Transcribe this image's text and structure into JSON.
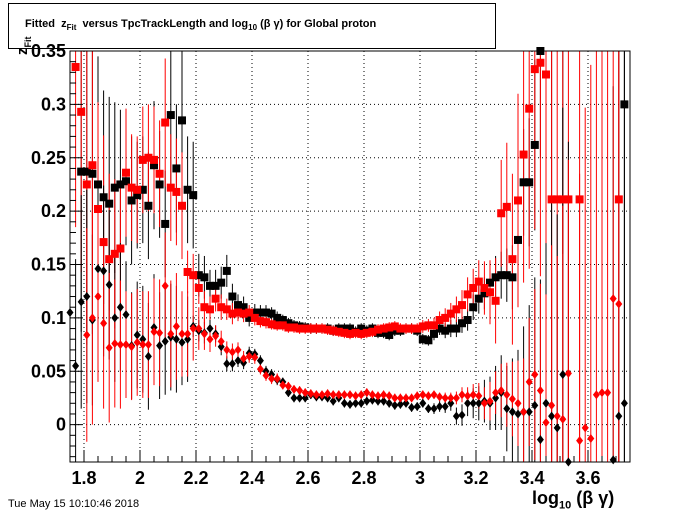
{
  "title": {
    "prefix": "Fitted",
    "z": "z",
    "z_sub": "Fit",
    "middle": "versus TpcTrackLength and log",
    "log_sub": "10",
    "suffix": "(β γ) for Global proton"
  },
  "ylabel": {
    "main": "z",
    "sub": "Fit"
  },
  "xlabel": {
    "main": "log",
    "sub": "10",
    "suffix": "(β γ)"
  },
  "footer": "Tue May 15 10:10:46 2018",
  "chart_data": {
    "type": "scatter",
    "xlim": [
      1.75,
      3.75
    ],
    "ylim": [
      -0.035,
      0.35
    ],
    "x_ticks": [
      "1.8",
      "2",
      "2.2",
      "2.4",
      "2.6",
      "2.8",
      "3",
      "3.2",
      "3.4",
      "3.6"
    ],
    "x_tick_values": [
      1.8,
      2.0,
      2.2,
      2.4,
      2.6,
      2.8,
      3.0,
      3.2,
      3.4,
      3.6
    ],
    "y_ticks": [
      "0",
      "0.05",
      "0.1",
      "0.15",
      "0.2",
      "0.25",
      "0.3",
      "0.35"
    ],
    "y_tick_values": [
      0,
      0.05,
      0.1,
      0.15,
      0.2,
      0.25,
      0.3,
      0.35
    ],
    "grid": true,
    "series": [
      {
        "marker": "square",
        "color": "#000000",
        "x": [
          1.79,
          1.81,
          1.83,
          1.85,
          1.87,
          1.89,
          1.91,
          1.93,
          1.95,
          1.97,
          1.99,
          2.01,
          2.03,
          2.05,
          2.07,
          2.09,
          2.11,
          2.13,
          2.15,
          2.17,
          2.19,
          2.21,
          2.23,
          2.25,
          2.27,
          2.29,
          2.31,
          2.33,
          2.35,
          2.37,
          2.39,
          2.41,
          2.43,
          2.45,
          2.47,
          2.49,
          2.51,
          2.53,
          2.55,
          2.57,
          2.59,
          2.61,
          2.63,
          2.65,
          2.67,
          2.69,
          2.71,
          2.73,
          2.75,
          2.77,
          2.79,
          2.81,
          2.83,
          2.85,
          2.87,
          2.89,
          2.91,
          2.93,
          2.95,
          2.97,
          2.99,
          3.01,
          3.03,
          3.05,
          3.07,
          3.09,
          3.11,
          3.13,
          3.15,
          3.17,
          3.19,
          3.21,
          3.23,
          3.25,
          3.27,
          3.29,
          3.31,
          3.33,
          3.35,
          3.37,
          3.39,
          3.41,
          3.43,
          3.45,
          3.47,
          3.51,
          3.73
        ],
        "y": [
          0.237,
          0.237,
          0.235,
          0.225,
          0.213,
          0.207,
          0.222,
          0.225,
          0.228,
          0.21,
          0.215,
          0.22,
          0.205,
          0.243,
          0.225,
          0.188,
          0.29,
          0.24,
          0.285,
          0.22,
          0.215,
          0.14,
          0.138,
          0.13,
          0.13,
          0.133,
          0.144,
          0.12,
          0.112,
          0.11,
          0.1,
          0.105,
          0.105,
          0.105,
          0.104,
          0.1,
          0.098,
          0.095,
          0.093,
          0.092,
          0.091,
          0.09,
          0.09,
          0.09,
          0.09,
          0.088,
          0.09,
          0.09,
          0.09,
          0.087,
          0.09,
          0.088,
          0.09,
          0.086,
          0.086,
          0.084,
          0.088,
          0.088,
          0.09,
          0.09,
          0.088,
          0.08,
          0.079,
          0.085,
          0.09,
          0.088,
          0.09,
          0.09,
          0.095,
          0.098,
          0.11,
          0.118,
          0.123,
          0.133,
          0.138,
          0.14,
          0.14,
          0.138,
          0.173,
          0.227,
          0.227,
          0.262,
          0.35,
          0.36,
          0.36,
          0.36,
          0.3
        ],
        "err": [
          0.15,
          0.15,
          0.15,
          0.12,
          0.1,
          0.1,
          0.08,
          0.07,
          0.06,
          0.06,
          0.05,
          0.05,
          0.05,
          0.06,
          0.05,
          0.05,
          0.07,
          0.06,
          0.07,
          0.05,
          0.05,
          0.02,
          0.02,
          0.015,
          0.015,
          0.015,
          0.015,
          0.012,
          0.01,
          0.01,
          0.008,
          0.008,
          0.007,
          0.007,
          0.006,
          0.006,
          0.005,
          0.005,
          0.005,
          0.005,
          0.005,
          0.005,
          0.005,
          0.005,
          0.005,
          0.005,
          0.005,
          0.005,
          0.005,
          0.005,
          0.005,
          0.005,
          0.005,
          0.005,
          0.005,
          0.005,
          0.005,
          0.005,
          0.005,
          0.005,
          0.005,
          0.005,
          0.005,
          0.006,
          0.006,
          0.007,
          0.008,
          0.008,
          0.009,
          0.01,
          0.012,
          0.014,
          0.015,
          0.017,
          0.02,
          0.022,
          0.025,
          0.03,
          0.04,
          0.05,
          0.06,
          0.08,
          0.1,
          0.12,
          0.15,
          0.2,
          0.35
        ]
      },
      {
        "marker": "square",
        "color": "#ff0000",
        "x": [
          1.77,
          1.79,
          1.81,
          1.83,
          1.85,
          1.87,
          1.89,
          1.91,
          1.93,
          1.95,
          1.97,
          1.99,
          2.01,
          2.03,
          2.05,
          2.07,
          2.09,
          2.11,
          2.13,
          2.15,
          2.17,
          2.19,
          2.21,
          2.23,
          2.25,
          2.27,
          2.29,
          2.31,
          2.33,
          2.35,
          2.37,
          2.39,
          2.41,
          2.43,
          2.45,
          2.47,
          2.49,
          2.51,
          2.53,
          2.55,
          2.57,
          2.59,
          2.61,
          2.63,
          2.65,
          2.67,
          2.69,
          2.71,
          2.73,
          2.75,
          2.77,
          2.79,
          2.81,
          2.83,
          2.85,
          2.87,
          2.89,
          2.91,
          2.93,
          2.95,
          2.97,
          2.99,
          3.01,
          3.03,
          3.05,
          3.07,
          3.09,
          3.11,
          3.13,
          3.15,
          3.17,
          3.19,
          3.21,
          3.23,
          3.25,
          3.27,
          3.29,
          3.31,
          3.33,
          3.35,
          3.37,
          3.39,
          3.41,
          3.43,
          3.45,
          3.47,
          3.49,
          3.51,
          3.53,
          3.57,
          3.71
        ],
        "y": [
          0.335,
          0.293,
          0.225,
          0.243,
          0.202,
          0.171,
          0.155,
          0.16,
          0.165,
          0.236,
          0.222,
          0.22,
          0.248,
          0.25,
          0.248,
          0.235,
          0.283,
          0.222,
          0.218,
          0.205,
          0.143,
          0.14,
          0.128,
          0.11,
          0.108,
          0.118,
          0.11,
          0.108,
          0.104,
          0.105,
          0.104,
          0.105,
          0.1,
          0.097,
          0.096,
          0.094,
          0.093,
          0.093,
          0.091,
          0.091,
          0.09,
          0.09,
          0.09,
          0.09,
          0.09,
          0.089,
          0.088,
          0.087,
          0.086,
          0.085,
          0.086,
          0.085,
          0.086,
          0.087,
          0.089,
          0.09,
          0.091,
          0.092,
          0.09,
          0.09,
          0.09,
          0.09,
          0.092,
          0.093,
          0.093,
          0.098,
          0.1,
          0.104,
          0.108,
          0.112,
          0.122,
          0.128,
          0.134,
          0.128,
          0.124,
          0.116,
          0.198,
          0.204,
          0.155,
          0.21,
          0.253,
          0.296,
          0.333,
          0.339,
          0.328,
          0.211,
          0.211,
          0.211,
          0.211,
          0.211,
          0.211
        ],
        "err": [
          0.15,
          0.15,
          0.15,
          0.12,
          0.1,
          0.1,
          0.08,
          0.07,
          0.06,
          0.06,
          0.05,
          0.05,
          0.05,
          0.05,
          0.05,
          0.05,
          0.06,
          0.05,
          0.05,
          0.05,
          0.02,
          0.02,
          0.015,
          0.015,
          0.012,
          0.012,
          0.012,
          0.01,
          0.01,
          0.008,
          0.008,
          0.007,
          0.007,
          0.006,
          0.006,
          0.005,
          0.005,
          0.005,
          0.005,
          0.005,
          0.005,
          0.005,
          0.005,
          0.005,
          0.005,
          0.005,
          0.005,
          0.005,
          0.005,
          0.005,
          0.005,
          0.005,
          0.005,
          0.005,
          0.005,
          0.005,
          0.005,
          0.005,
          0.005,
          0.005,
          0.005,
          0.005,
          0.006,
          0.006,
          0.007,
          0.008,
          0.009,
          0.01,
          0.012,
          0.014,
          0.016,
          0.018,
          0.02,
          0.025,
          0.03,
          0.04,
          0.05,
          0.06,
          0.08,
          0.1,
          0.12,
          0.15,
          0.15,
          0.2,
          0.25,
          0.25,
          0.3,
          0.3,
          0.3,
          0.35,
          0.35
        ]
      },
      {
        "marker": "diamond",
        "color": "#000000",
        "x": [
          1.75,
          1.77,
          1.79,
          1.81,
          1.83,
          1.85,
          1.87,
          1.89,
          1.91,
          1.93,
          1.95,
          1.97,
          1.99,
          2.01,
          2.03,
          2.05,
          2.07,
          2.09,
          2.11,
          2.13,
          2.15,
          2.17,
          2.19,
          2.21,
          2.23,
          2.25,
          2.27,
          2.29,
          2.31,
          2.33,
          2.35,
          2.37,
          2.39,
          2.41,
          2.43,
          2.45,
          2.47,
          2.49,
          2.51,
          2.53,
          2.55,
          2.57,
          2.59,
          2.61,
          2.63,
          2.65,
          2.67,
          2.69,
          2.71,
          2.73,
          2.75,
          2.77,
          2.79,
          2.81,
          2.83,
          2.85,
          2.87,
          2.89,
          2.91,
          2.93,
          2.95,
          2.97,
          2.99,
          3.01,
          3.03,
          3.05,
          3.07,
          3.09,
          3.11,
          3.13,
          3.15,
          3.17,
          3.19,
          3.21,
          3.23,
          3.25,
          3.27,
          3.29,
          3.31,
          3.33,
          3.35,
          3.37,
          3.39,
          3.41,
          3.43,
          3.45,
          3.47,
          3.49,
          3.51,
          3.53,
          3.69,
          3.71,
          3.73
        ],
        "y": [
          0.105,
          0.055,
          0.115,
          0.12,
          0.098,
          0.146,
          0.144,
          0.131,
          0.1,
          0.11,
          0.103,
          0.074,
          0.084,
          0.08,
          0.064,
          0.091,
          0.074,
          0.078,
          0.082,
          0.08,
          0.077,
          0.08,
          0.092,
          0.088,
          0.086,
          0.09,
          0.085,
          0.073,
          0.057,
          0.057,
          0.06,
          0.058,
          0.067,
          0.066,
          0.06,
          0.05,
          0.047,
          0.042,
          0.04,
          0.03,
          0.025,
          0.025,
          0.025,
          0.028,
          0.026,
          0.026,
          0.025,
          0.022,
          0.025,
          0.02,
          0.019,
          0.02,
          0.02,
          0.022,
          0.023,
          0.022,
          0.022,
          0.02,
          0.018,
          0.019,
          0.02,
          0.016,
          0.017,
          0.02,
          0.015,
          0.015,
          0.017,
          0.017,
          0.02,
          0.008,
          0.009,
          0.02,
          0.02,
          0.02,
          0.022,
          0.02,
          0.025,
          0.03,
          0.015,
          0.012,
          0.01,
          0.012,
          0.012,
          0.018,
          -0.014,
          0.02,
          0.008,
          -0.003,
          0.047,
          -0.035,
          -0.033,
          0.008,
          0.02
        ],
        "err": [
          0.1,
          0.1,
          0.1,
          0.1,
          0.08,
          0.08,
          0.08,
          0.07,
          0.06,
          0.06,
          0.05,
          0.05,
          0.05,
          0.05,
          0.05,
          0.05,
          0.05,
          0.05,
          0.05,
          0.05,
          0.04,
          0.04,
          0.01,
          0.01,
          0.01,
          0.008,
          0.008,
          0.008,
          0.007,
          0.007,
          0.006,
          0.006,
          0.006,
          0.005,
          0.005,
          0.005,
          0.005,
          0.005,
          0.004,
          0.004,
          0.004,
          0.004,
          0.004,
          0.004,
          0.004,
          0.004,
          0.004,
          0.004,
          0.004,
          0.004,
          0.004,
          0.004,
          0.004,
          0.004,
          0.004,
          0.004,
          0.004,
          0.004,
          0.004,
          0.004,
          0.004,
          0.004,
          0.004,
          0.004,
          0.004,
          0.005,
          0.005,
          0.006,
          0.007,
          0.008,
          0.01,
          0.012,
          0.014,
          0.016,
          0.02,
          0.025,
          0.03,
          0.035,
          0.04,
          0.05,
          0.06,
          0.08,
          0.1,
          0.12,
          0.15,
          0.15,
          0.2,
          0.2,
          0.25,
          0.3,
          0.35,
          0.35,
          0.35
        ]
      },
      {
        "marker": "diamond",
        "color": "#ff0000",
        "x": [
          1.81,
          1.83,
          1.85,
          1.87,
          1.89,
          1.91,
          1.93,
          1.95,
          1.97,
          1.99,
          2.01,
          2.03,
          2.05,
          2.07,
          2.09,
          2.11,
          2.13,
          2.15,
          2.17,
          2.19,
          2.21,
          2.23,
          2.25,
          2.27,
          2.29,
          2.31,
          2.33,
          2.35,
          2.37,
          2.39,
          2.41,
          2.43,
          2.45,
          2.47,
          2.49,
          2.51,
          2.53,
          2.55,
          2.57,
          2.59,
          2.61,
          2.63,
          2.65,
          2.67,
          2.69,
          2.71,
          2.73,
          2.75,
          2.77,
          2.79,
          2.81,
          2.83,
          2.85,
          2.87,
          2.89,
          2.91,
          2.93,
          2.95,
          2.97,
          2.99,
          3.01,
          3.03,
          3.05,
          3.07,
          3.09,
          3.11,
          3.13,
          3.15,
          3.17,
          3.19,
          3.21,
          3.23,
          3.25,
          3.27,
          3.29,
          3.31,
          3.33,
          3.35,
          3.37,
          3.39,
          3.41,
          3.43,
          3.45,
          3.47,
          3.49,
          3.51,
          3.53,
          3.57,
          3.59,
          3.61,
          3.63,
          3.65,
          3.67,
          3.69,
          3.71
        ],
        "y": [
          0.084,
          0.1,
          0.12,
          0.095,
          0.072,
          0.076,
          0.075,
          0.075,
          0.073,
          0.077,
          0.075,
          0.075,
          0.087,
          0.086,
          0.13,
          0.085,
          0.092,
          0.085,
          0.085,
          0.09,
          0.09,
          0.085,
          0.08,
          0.083,
          0.078,
          0.07,
          0.068,
          0.07,
          0.062,
          0.064,
          0.063,
          0.052,
          0.046,
          0.043,
          0.043,
          0.037,
          0.036,
          0.033,
          0.032,
          0.03,
          0.029,
          0.028,
          0.028,
          0.029,
          0.028,
          0.028,
          0.028,
          0.028,
          0.027,
          0.028,
          0.03,
          0.028,
          0.027,
          0.028,
          0.027,
          0.025,
          0.025,
          0.025,
          0.025,
          0.027,
          0.028,
          0.027,
          0.028,
          0.026,
          0.025,
          0.025,
          0.025,
          0.028,
          0.027,
          0.028,
          0.027,
          0.02,
          0.022,
          0.03,
          0.032,
          0.028,
          0.024,
          0.02,
          0.012,
          0.04,
          0.047,
          0.032,
          0.002,
          0.018,
          0.008,
          0.005,
          0.048,
          -0.015,
          -0.003,
          -0.013,
          0.028,
          0.03,
          0.03,
          0.118,
          0.113
        ],
        "err": [
          0.1,
          0.1,
          0.08,
          0.08,
          0.07,
          0.06,
          0.06,
          0.05,
          0.05,
          0.05,
          0.05,
          0.05,
          0.05,
          0.05,
          0.05,
          0.05,
          0.05,
          0.04,
          0.04,
          0.03,
          0.02,
          0.015,
          0.012,
          0.01,
          0.01,
          0.008,
          0.008,
          0.007,
          0.007,
          0.006,
          0.006,
          0.005,
          0.005,
          0.005,
          0.005,
          0.004,
          0.004,
          0.004,
          0.004,
          0.004,
          0.004,
          0.004,
          0.004,
          0.004,
          0.004,
          0.004,
          0.004,
          0.004,
          0.004,
          0.004,
          0.004,
          0.004,
          0.004,
          0.004,
          0.004,
          0.004,
          0.004,
          0.004,
          0.004,
          0.004,
          0.004,
          0.004,
          0.004,
          0.004,
          0.005,
          0.005,
          0.006,
          0.007,
          0.008,
          0.01,
          0.012,
          0.015,
          0.018,
          0.02,
          0.025,
          0.03,
          0.035,
          0.04,
          0.05,
          0.06,
          0.08,
          0.1,
          0.12,
          0.15,
          0.15,
          0.2,
          0.2,
          0.25,
          0.3,
          0.35,
          0.35,
          0.35,
          0.35,
          0.35,
          0.35
        ]
      }
    ]
  }
}
